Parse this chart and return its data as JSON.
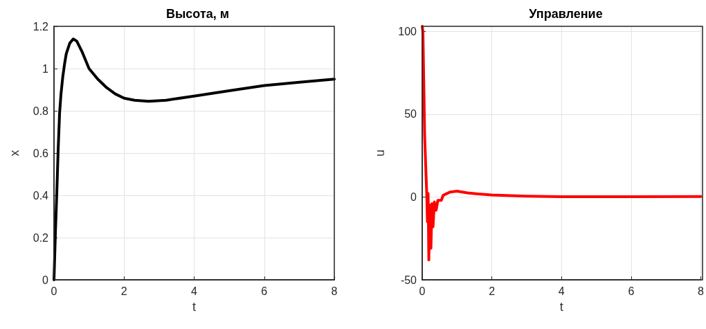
{
  "chart_data": [
    {
      "type": "line",
      "title": "Высота, м",
      "xlabel": "t",
      "ylabel": "x",
      "x": [
        0,
        0.04,
        0.08,
        0.12,
        0.16,
        0.2,
        0.25,
        0.3,
        0.35,
        0.45,
        0.55,
        0.65,
        0.8,
        1,
        1.25,
        1.5,
        1.75,
        2,
        2.3,
        2.7,
        3.2,
        4,
        5,
        6,
        7,
        8
      ],
      "series": [
        {
          "color": "#000000",
          "values": [
            0,
            0.22,
            0.41,
            0.62,
            0.79,
            0.88,
            0.96,
            1.02,
            1.07,
            1.12,
            1.14,
            1.13,
            1.08,
            1.0,
            0.95,
            0.91,
            0.88,
            0.86,
            0.85,
            0.845,
            0.85,
            0.87,
            0.895,
            0.92,
            0.935,
            0.95
          ]
        }
      ],
      "xlim": [
        0,
        8
      ],
      "xticks": [
        0,
        2,
        4,
        6,
        8
      ],
      "ylim": [
        0,
        1.2
      ],
      "yticks": [
        0,
        0.2,
        0.4,
        0.6,
        0.8,
        1,
        1.2
      ],
      "grid": true,
      "marker": "none",
      "line_style": "solid"
    },
    {
      "type": "line",
      "title": "Управление",
      "xlabel": "t",
      "ylabel": "u",
      "x": [
        0,
        0.02,
        0.05,
        0.07,
        0.1,
        0.13,
        0.15,
        0.17,
        0.19,
        0.21,
        0.23,
        0.25,
        0.28,
        0.31,
        0.35,
        0.4,
        0.45,
        0.55,
        0.6,
        0.7,
        0.8,
        1,
        1.3,
        1.6,
        2,
        3,
        4,
        6,
        8
      ],
      "series": [
        {
          "color": "#ff0000",
          "values": [
            103,
            100,
            62,
            37,
            19,
            2,
            -15,
            2,
            -38,
            -10,
            -5,
            -31,
            -4,
            -18,
            -3,
            -8,
            -2,
            -2,
            1,
            2,
            3,
            3.5,
            2.5,
            1.8,
            1.2,
            0.5,
            0.2,
            0.2,
            0.3
          ]
        }
      ],
      "xlim": [
        0,
        8
      ],
      "xticks": [
        0,
        2,
        4,
        6,
        8
      ],
      "ylim": [
        -50,
        103
      ],
      "yticks": [
        -50,
        0,
        50,
        100
      ],
      "grid": true,
      "marker": "none",
      "line_style": "solid"
    }
  ]
}
